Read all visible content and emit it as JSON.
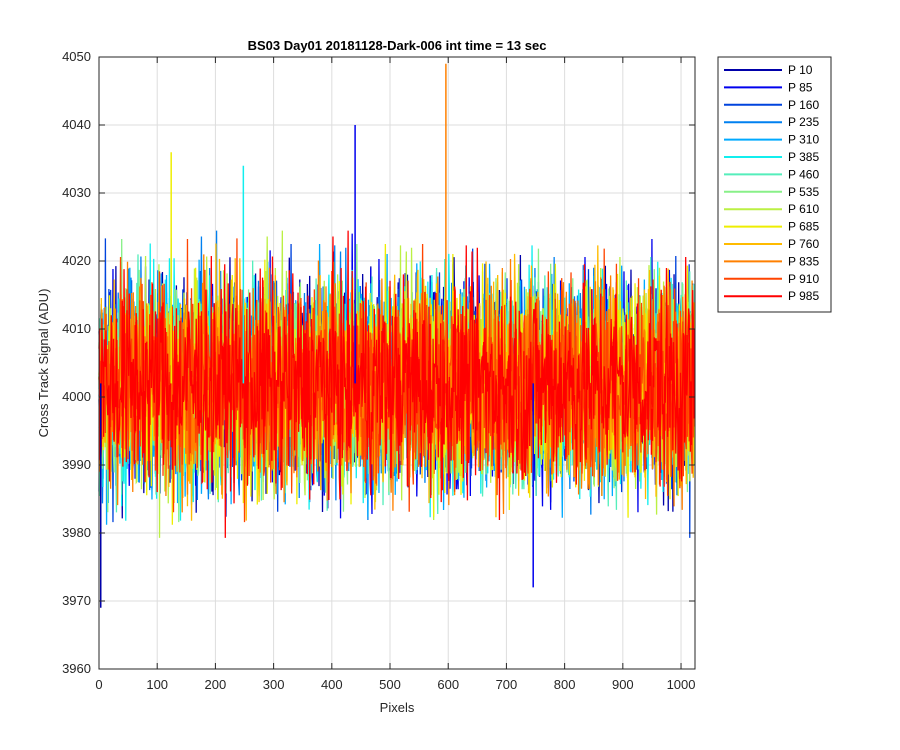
{
  "chart_data": {
    "type": "line",
    "title": "BS03 Day01 20181128-Dark-006 int time = 13 sec",
    "xlabel": "Pixels",
    "ylabel": "Cross Track Signal (ADU)",
    "xlim": [
      0,
      1024
    ],
    "ylim": [
      3960,
      4050
    ],
    "x_ticks": [
      0,
      100,
      200,
      300,
      400,
      500,
      600,
      700,
      800,
      900,
      1000
    ],
    "y_ticks": [
      3960,
      3970,
      3980,
      3990,
      4000,
      4010,
      4020,
      4030,
      4040,
      4050
    ],
    "grid": true,
    "legend_position": "outside-right",
    "x": "pixel index 0..1023",
    "series": [
      {
        "name": "P 10",
        "color": "#0000aa",
        "mean": 4002,
        "min": 3969,
        "max": 4033
      },
      {
        "name": "P 85",
        "color": "#0000ee",
        "mean": 4002,
        "min": 3972,
        "max": 4040
      },
      {
        "name": "P 160",
        "color": "#0044dd",
        "mean": 4002,
        "min": 3975,
        "max": 4030
      },
      {
        "name": "P 235",
        "color": "#0080f0",
        "mean": 4002,
        "min": 3974,
        "max": 4031
      },
      {
        "name": "P 310",
        "color": "#00aaff",
        "mean": 4002,
        "min": 3976,
        "max": 4030
      },
      {
        "name": "P 385",
        "color": "#11eeee",
        "mean": 4002,
        "min": 3976,
        "max": 4034
      },
      {
        "name": "P 460",
        "color": "#55eebb",
        "mean": 4002,
        "min": 3978,
        "max": 4031
      },
      {
        "name": "P 535",
        "color": "#88f088",
        "mean": 4002,
        "min": 3971,
        "max": 4030
      },
      {
        "name": "P 610",
        "color": "#bbf044",
        "mean": 4002,
        "min": 3977,
        "max": 4030
      },
      {
        "name": "P 685",
        "color": "#eeee00",
        "mean": 4002,
        "min": 3975,
        "max": 4036
      },
      {
        "name": "P 760",
        "color": "#ffbb00",
        "mean": 4002,
        "min": 3975,
        "max": 4031
      },
      {
        "name": "P 835",
        "color": "#ff8000",
        "mean": 4002,
        "min": 3976,
        "max": 4049
      },
      {
        "name": "P 910",
        "color": "#ff4400",
        "mean": 4002,
        "min": 3976,
        "max": 4033
      },
      {
        "name": "P 985",
        "color": "#ff0000",
        "mean": 4002,
        "min": 3979,
        "max": 4025
      }
    ]
  }
}
